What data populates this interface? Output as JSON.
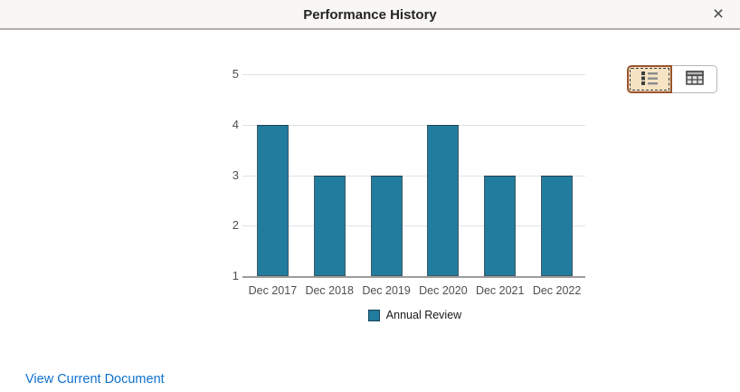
{
  "dialog": {
    "title": "Performance History",
    "close_icon_glyph": "×"
  },
  "chart_data": {
    "type": "bar",
    "title": "",
    "xlabel": "",
    "ylabel": "",
    "categories": [
      "Dec 2017",
      "Dec 2018",
      "Dec 2019",
      "Dec 2020",
      "Dec 2021",
      "Dec 2022"
    ],
    "series": [
      {
        "name": "Annual Review",
        "values": [
          4,
          3,
          3,
          4,
          3,
          3
        ]
      }
    ],
    "ylim": [
      1,
      5
    ],
    "yticks": [
      1,
      2,
      3,
      4,
      5
    ],
    "grid": true,
    "legend_position": "bottom",
    "bar_color": "#227c9e",
    "bar_border_color": "#3e5a66",
    "gridline_color": "#dce5ea",
    "baseline_color": "#9c9c9c"
  },
  "view_toggle": {
    "options": [
      {
        "name": "list-view",
        "icon": "list-icon",
        "selected": true
      },
      {
        "name": "table-view",
        "icon": "table-icon",
        "selected": false
      }
    ]
  },
  "footer": {
    "link_label": "View Current Document"
  },
  "colors": {
    "link": "#0e70ce",
    "selected_toggle_bg": "#f6e3c3",
    "selected_toggle_border": "#9a542d",
    "header_bg": "#f8f7f4"
  }
}
